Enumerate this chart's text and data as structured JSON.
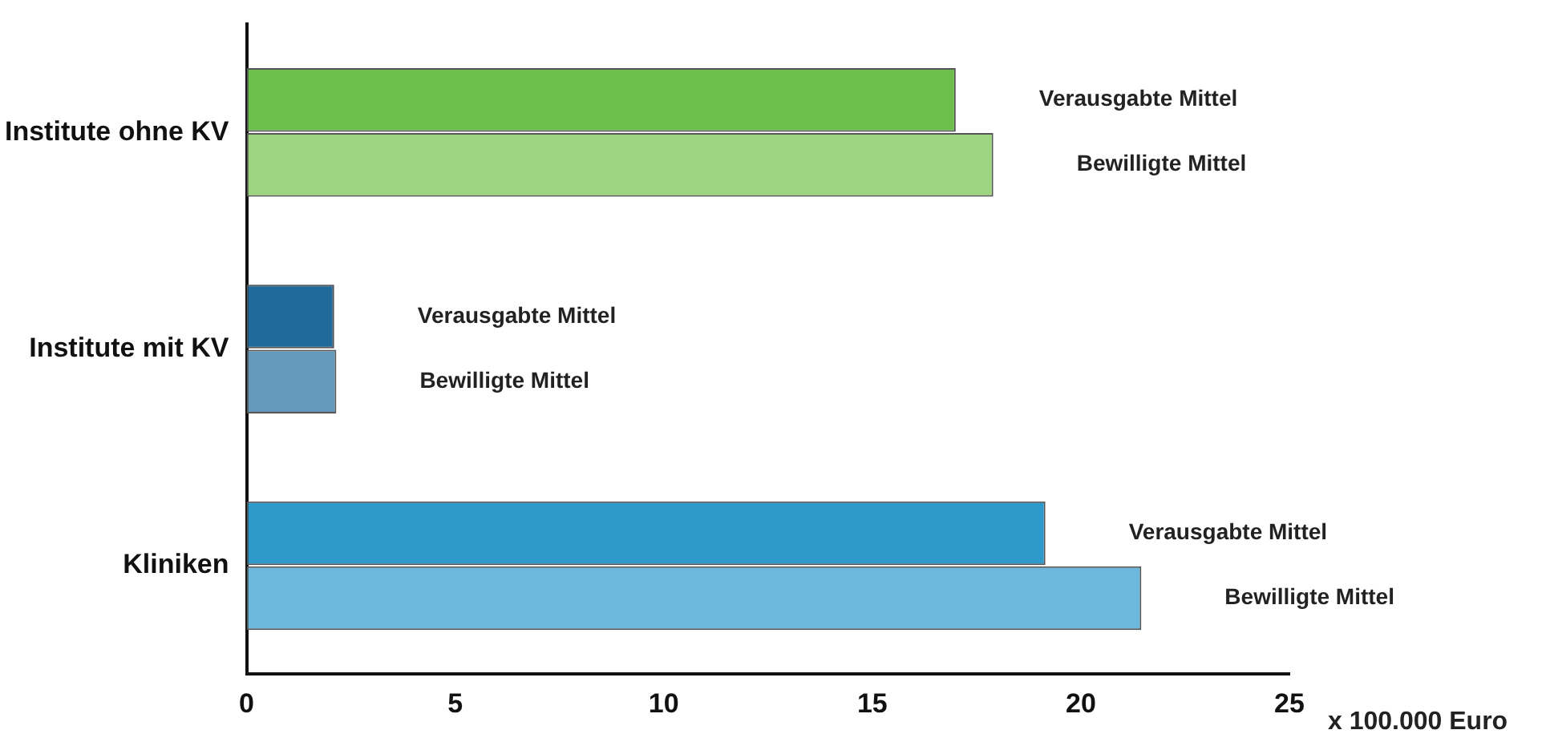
{
  "chart_data": {
    "type": "bar",
    "orientation": "horizontal",
    "xlabel": "x 100.000 Euro",
    "categories": [
      "Institute ohne KV",
      "Institute mit KV",
      "Kliniken"
    ],
    "series": [
      {
        "name": "Verausgabte Mittel",
        "colors": [
          "#6cbf4b",
          "#1f6a9a",
          "#2e9acb"
        ],
        "values": [
          17.0,
          2.1,
          19.15
        ]
      },
      {
        "name": "Bewilligte Mittel",
        "colors": [
          "#9dd47f",
          "#6499bb",
          "#6cb7dc"
        ],
        "values": [
          17.9,
          2.15,
          21.45
        ]
      }
    ],
    "xlim": [
      0,
      25
    ],
    "xticks": [
      0,
      5,
      10,
      15,
      20,
      25
    ],
    "grid": false,
    "legend": false
  }
}
